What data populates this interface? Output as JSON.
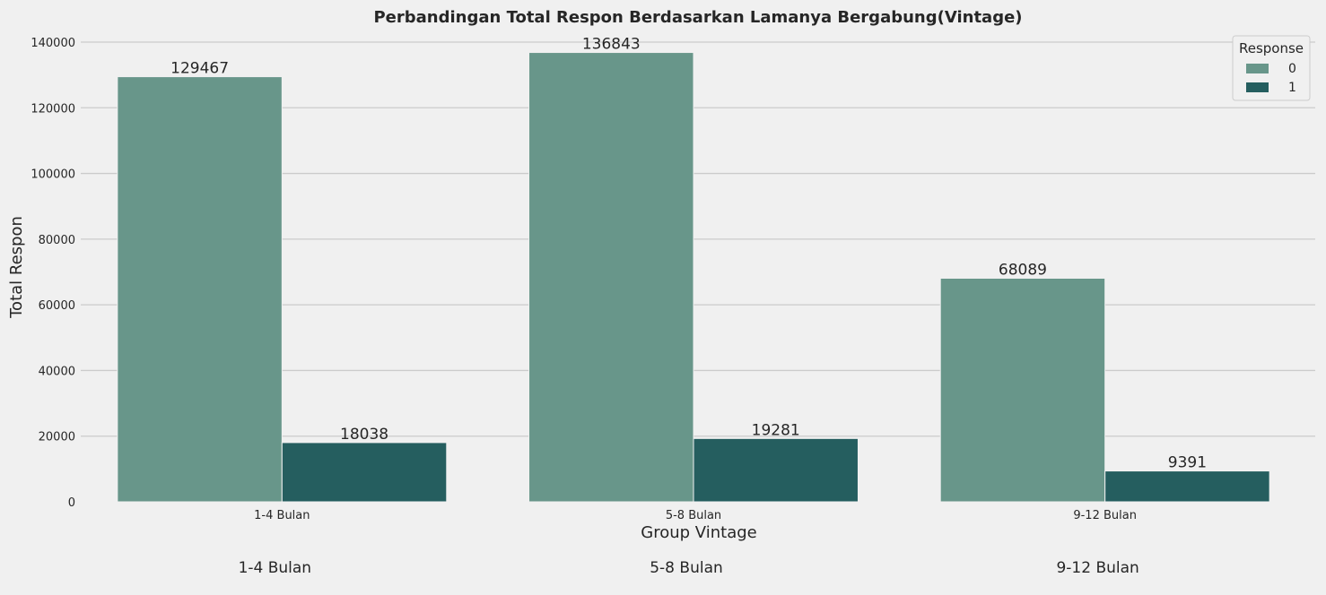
{
  "chart_data": {
    "type": "bar",
    "title": "Perbandingan Total Respon Berdasarkan Lamanya Bergabung(Vintage)",
    "xlabel": "Group Vintage",
    "ylabel": "Total Respon",
    "categories": [
      "1-4 Bulan",
      "5-8 Bulan",
      "9-12 Bulan"
    ],
    "series": [
      {
        "name": "0",
        "values": [
          129467,
          136843,
          68089
        ],
        "color": "#68968a"
      },
      {
        "name": "1",
        "values": [
          18038,
          19281,
          9391
        ],
        "color": "#255e5f"
      }
    ],
    "ylim": [
      0,
      140000
    ],
    "yticks": [
      "0",
      "20000",
      "40000",
      "60000",
      "80000",
      "100000",
      "120000",
      "140000"
    ],
    "legend": {
      "title": "Response",
      "position": "top-right"
    },
    "grid": true,
    "extra_labels": [
      "1-4 Bulan",
      "5-8 Bulan",
      "9-12 Bulan"
    ]
  }
}
